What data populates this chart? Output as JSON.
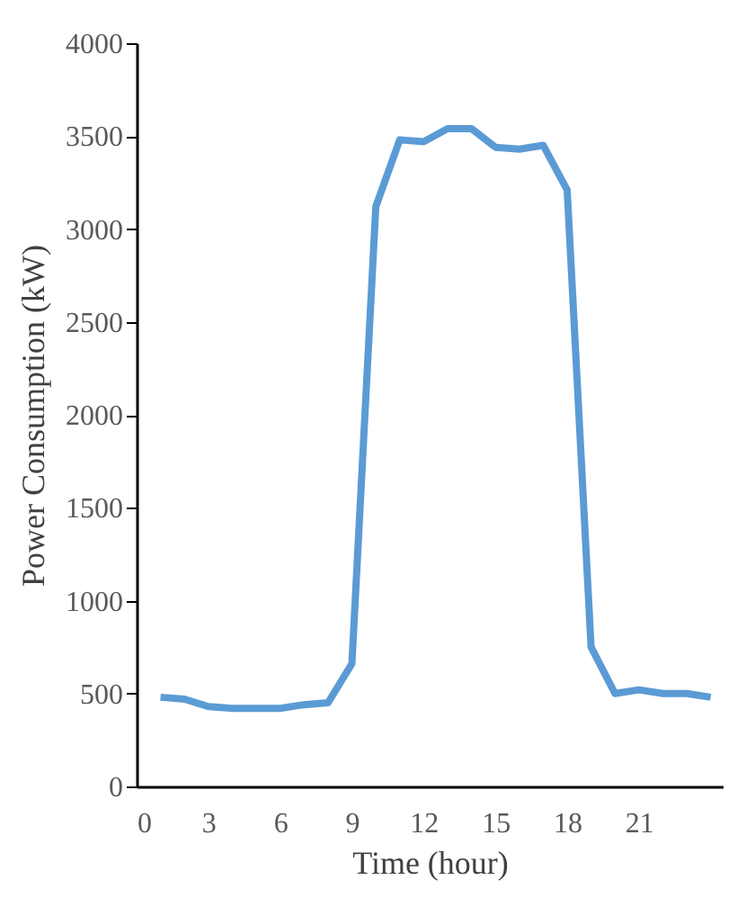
{
  "chart_data": {
    "type": "line",
    "xlabel": "Time (hour)",
    "ylabel": "Power Consumption (kW)",
    "x": [
      1,
      2,
      3,
      4,
      5,
      6,
      7,
      8,
      9,
      10,
      11,
      12,
      13,
      14,
      15,
      16,
      17,
      18,
      19,
      20,
      21,
      22,
      23,
      24
    ],
    "series": [
      {
        "color": "#5b9bd5",
        "values": [
          480,
          470,
          430,
          420,
          420,
          420,
          440,
          450,
          660,
          3120,
          3480,
          3470,
          3540,
          3540,
          3440,
          3430,
          3450,
          3210,
          750,
          500,
          520,
          500,
          500,
          480
        ]
      }
    ],
    "xlim": [
      0,
      24.5
    ],
    "xticks": [
      0,
      3,
      6,
      9,
      12,
      15,
      18,
      21
    ],
    "ylim": [
      0,
      4000
    ],
    "yticks": [
      0,
      500,
      1000,
      1500,
      2000,
      2500,
      3000,
      3500,
      4000
    ],
    "grid": false,
    "legend": false,
    "marker": "none",
    "line_style": "solid"
  }
}
